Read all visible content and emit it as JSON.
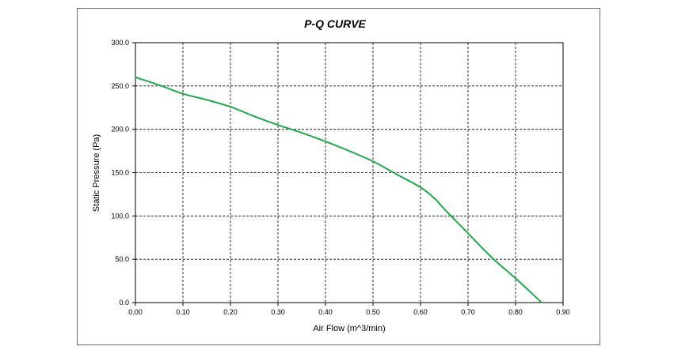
{
  "chart_data": {
    "type": "line",
    "title": "P-Q CURVE",
    "xlabel": "Air Flow (m^3/min)",
    "ylabel": "Static Pressure (Pa)",
    "xlim": [
      0.0,
      0.9
    ],
    "ylim": [
      0.0,
      300.0
    ],
    "x_ticks": [
      "0.00",
      "0.10",
      "0.20",
      "0.30",
      "0.40",
      "0.50",
      "0.60",
      "0.70",
      "0.80",
      "0.90"
    ],
    "y_ticks": [
      "0.0",
      "50.0",
      "100.0",
      "150.0",
      "200.0",
      "250.0",
      "300.0"
    ],
    "grid": true,
    "line_color": "#22a84a",
    "series": [
      {
        "x": [
          0.0,
          0.05,
          0.1,
          0.15,
          0.2,
          0.25,
          0.3,
          0.35,
          0.4,
          0.45,
          0.5,
          0.55,
          0.6,
          0.63,
          0.65,
          0.7,
          0.75,
          0.8,
          0.855
        ],
        "y": [
          260,
          251,
          241,
          234,
          226,
          215,
          205,
          196,
          186,
          175,
          163,
          148,
          133,
          120,
          108,
          80,
          52,
          28,
          0
        ]
      }
    ]
  }
}
